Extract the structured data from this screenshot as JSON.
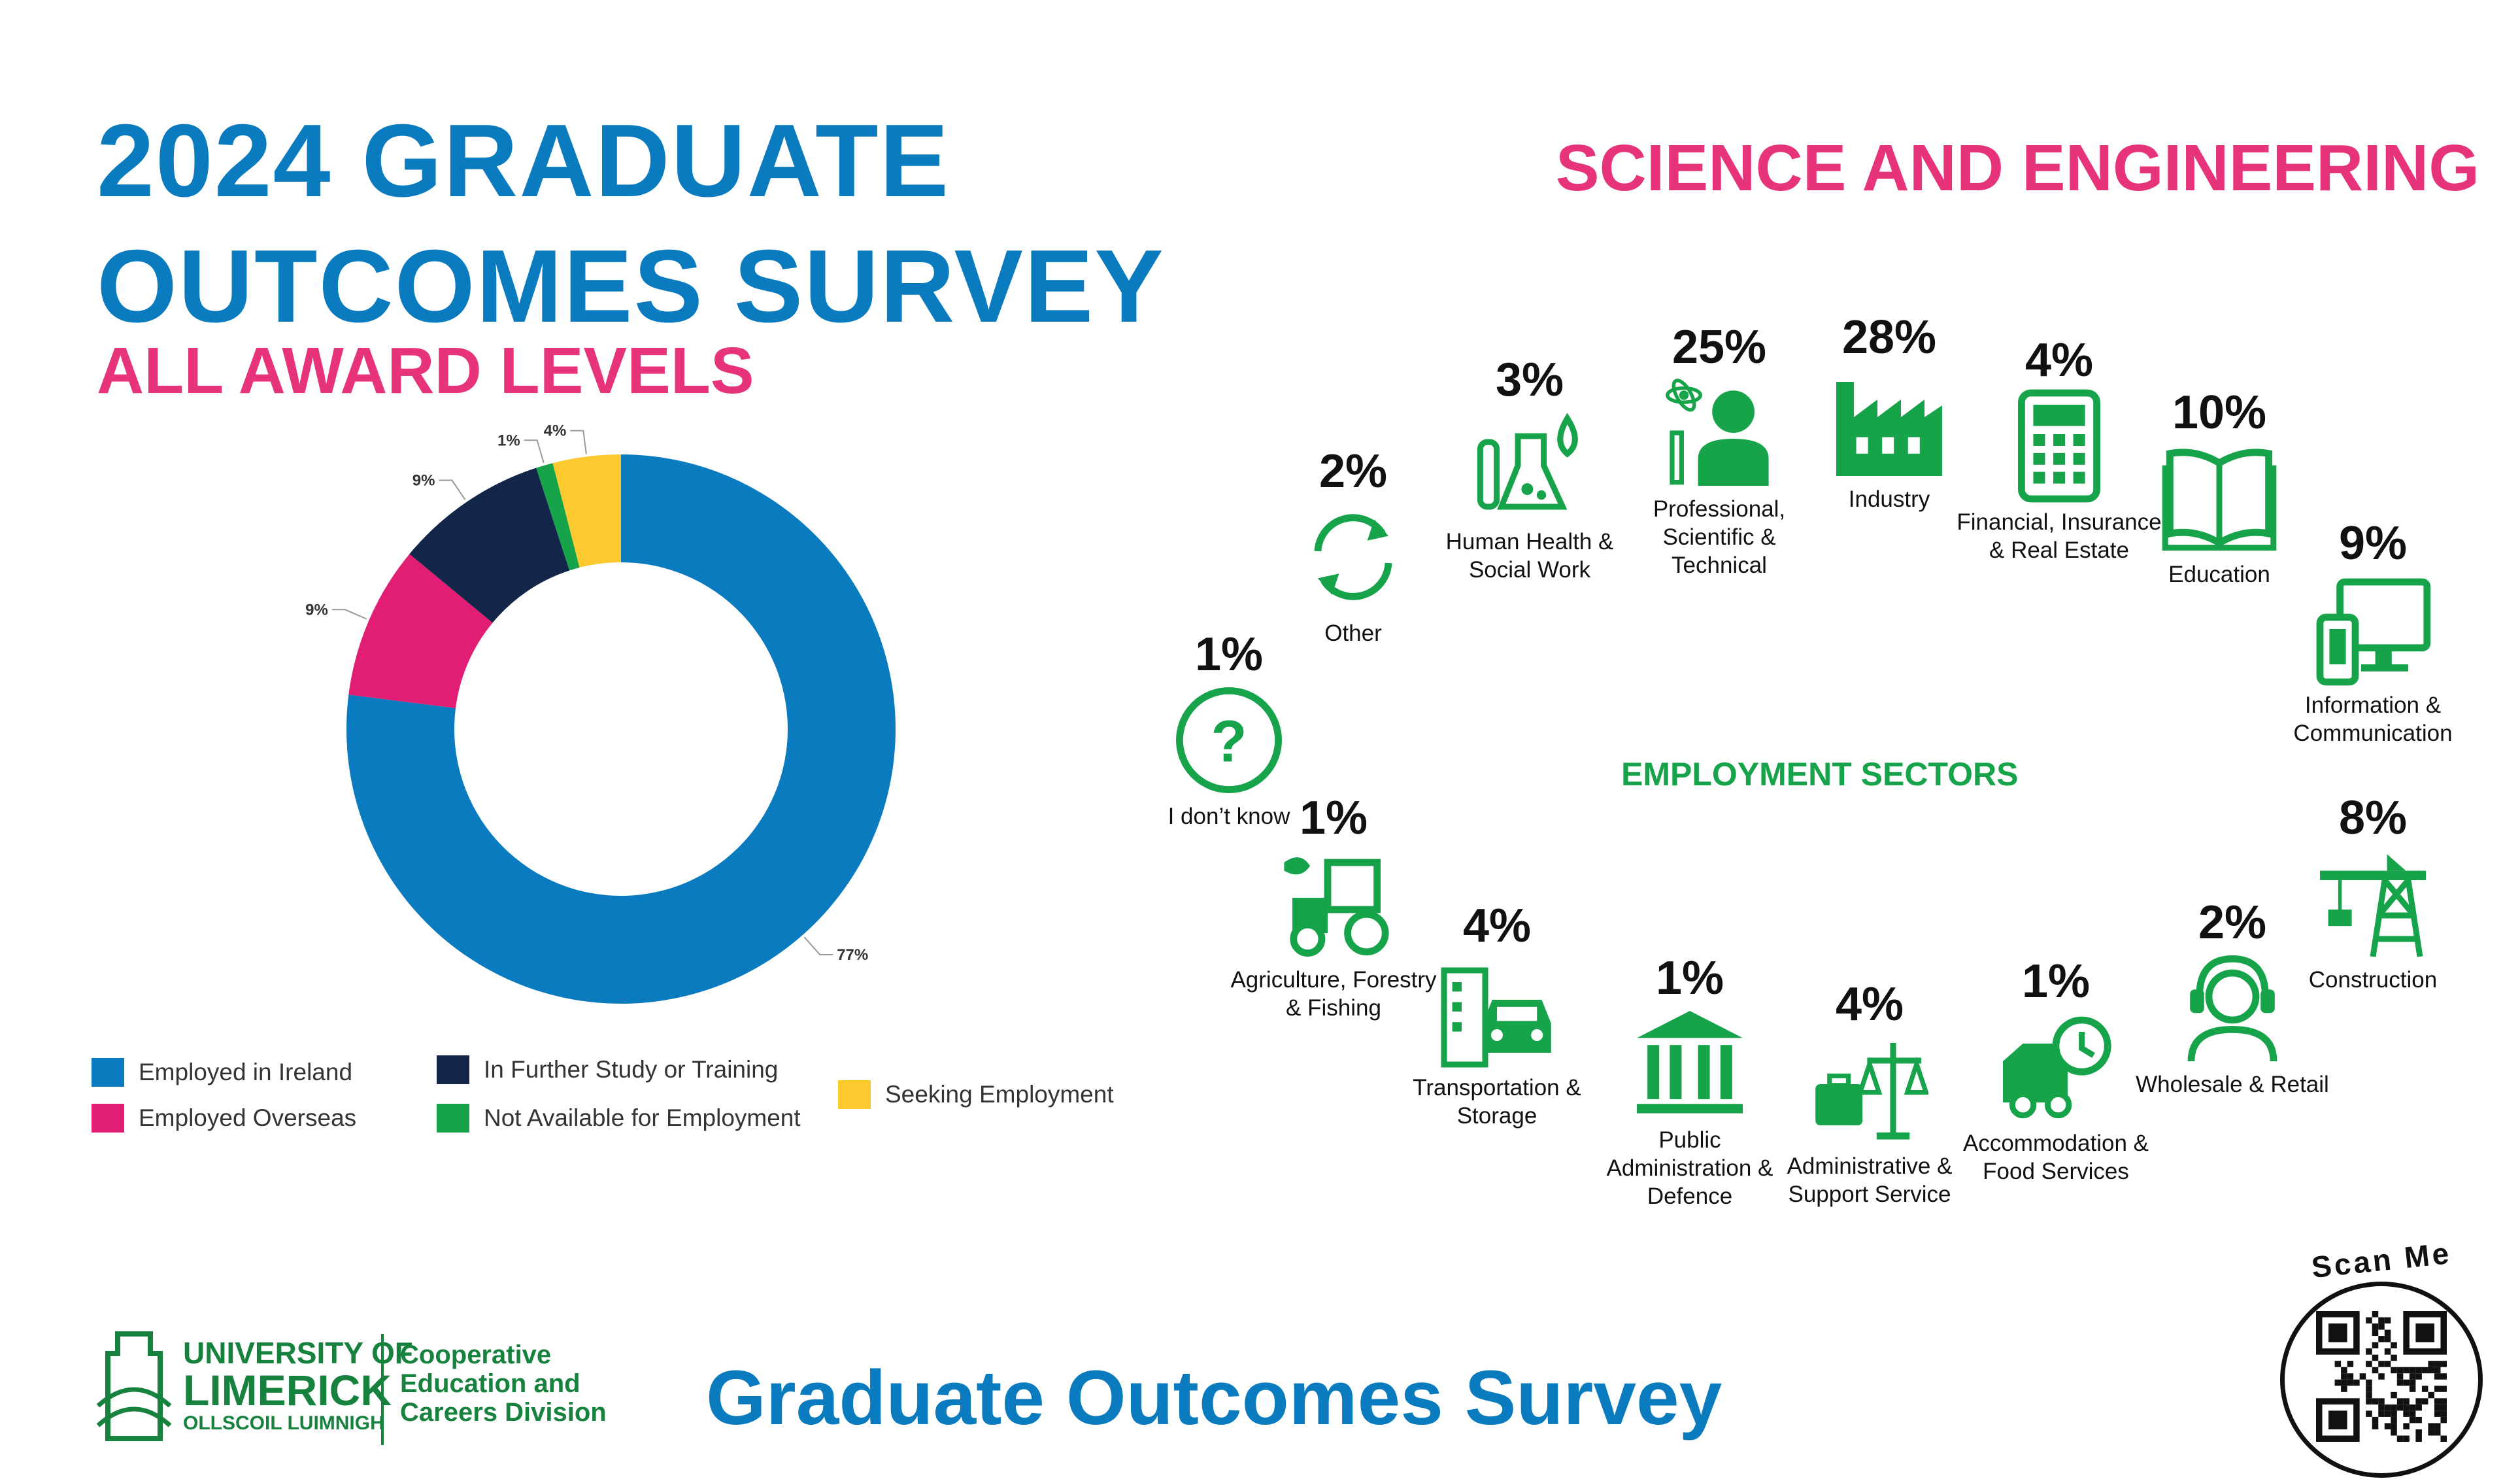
{
  "header": {
    "title_line1": "2024 GRADUATE",
    "title_line2": "OUTCOMES SURVEY",
    "subtitle": "ALL AWARD LEVELS",
    "faculty": "SCIENCE AND ENGINEERING"
  },
  "chart_data": {
    "type": "pie",
    "donut": true,
    "legend_placement": "bottom",
    "categories": [
      "Employed in Ireland",
      "Employed Overseas",
      "In Further Study or Training",
      "Not Available for Employment",
      "Seeking Employment"
    ],
    "values": [
      77,
      9,
      9,
      1,
      4
    ],
    "data_labels": [
      "77%",
      "9%",
      "9%",
      "1%",
      "4%"
    ],
    "colors": [
      "#0a7bbf",
      "#e11d74",
      "#13264a",
      "#17a34a",
      "#fcc92f"
    ]
  },
  "sectors": {
    "title": "EMPLOYMENT SECTORS",
    "items": [
      {
        "pct": "1%",
        "label": "I don’t know",
        "icon": "question-icon"
      },
      {
        "pct": "2%",
        "label": "Other",
        "icon": "refresh-icon"
      },
      {
        "pct": "3%",
        "label": "Human Health & Social Work",
        "icon": "flask-icon"
      },
      {
        "pct": "25%",
        "label": "Professional, Scientific & Technical",
        "icon": "scientist-icon"
      },
      {
        "pct": "28%",
        "label": "Industry",
        "icon": "factory-icon"
      },
      {
        "pct": "4%",
        "label": "Financial, Insurance & Real Estate",
        "icon": "calculator-icon"
      },
      {
        "pct": "10%",
        "label": "Education",
        "icon": "book-icon"
      },
      {
        "pct": "9%",
        "label": "Information & Communication",
        "icon": "devices-icon"
      },
      {
        "pct": "8%",
        "label": "Construction",
        "icon": "crane-icon"
      },
      {
        "pct": "2%",
        "label": "Wholesale & Retail",
        "icon": "headset-icon"
      },
      {
        "pct": "1%",
        "label": "Accommodation & Food Services",
        "icon": "delivery-truck-icon"
      },
      {
        "pct": "4%",
        "label": "Administrative & Support Service",
        "icon": "scales-icon"
      },
      {
        "pct": "1%",
        "label": "Public Administration & Defence",
        "icon": "government-building-icon"
      },
      {
        "pct": "4%",
        "label": "Transportation & Storage",
        "icon": "car-building-icon"
      },
      {
        "pct": "1%",
        "label": "Agriculture, Forestry & Fishing",
        "icon": "tractor-icon"
      }
    ]
  },
  "footer": {
    "ul_line1": "UNIVERSITY OF",
    "ul_line2": "LIMERICK",
    "ul_line3": "OLLSCOIL LUIMNIGH",
    "division_line1": "Cooperative",
    "division_line2": "Education and",
    "division_line3": "Careers Division",
    "survey_title": "Graduate Outcomes Survey",
    "scan_label": "Scan Me"
  },
  "colors": {
    "brand_blue": "#0a7bbf",
    "brand_pink": "#e6337a",
    "sector_green": "#16a34a",
    "ul_green": "#16823e"
  }
}
